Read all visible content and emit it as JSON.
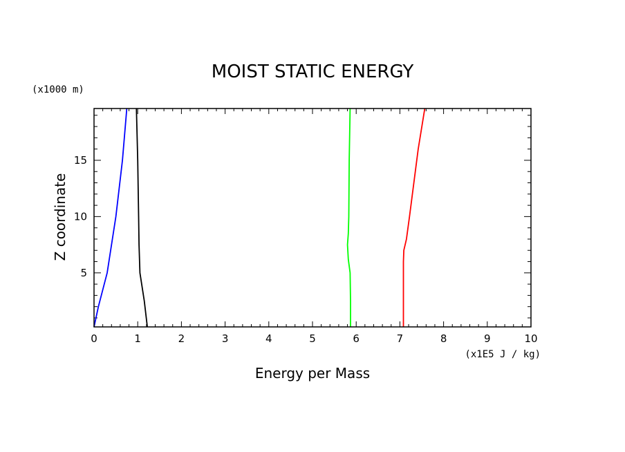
{
  "chart_data": {
    "type": "line",
    "title": "MOIST STATIC ENERGY",
    "xlabel": "Energy per Mass",
    "ylabel": "Z coordinate",
    "x_unit": "(x1E5 J / kg)",
    "y_unit": "(x1000 m)",
    "xlim": [
      0,
      10
    ],
    "ylim": [
      0.2,
      19.6
    ],
    "x_ticks": [
      0,
      1,
      2,
      3,
      4,
      5,
      6,
      7,
      8,
      9,
      10
    ],
    "y_ticks": [
      5,
      10,
      15
    ],
    "grid": false,
    "series": [
      {
        "color": "#0000ff",
        "points": [
          [
            0.0,
            0.2
          ],
          [
            0.1,
            2.0
          ],
          [
            0.3,
            5.0
          ],
          [
            0.5,
            10.0
          ],
          [
            0.65,
            15.0
          ],
          [
            0.75,
            19.6
          ]
        ]
      },
      {
        "color": "#000000",
        "points": [
          [
            1.22,
            0.2
          ],
          [
            1.15,
            2.5
          ],
          [
            1.05,
            5.0
          ],
          [
            1.03,
            7.5
          ],
          [
            1.02,
            10.0
          ],
          [
            1.0,
            15.0
          ],
          [
            0.97,
            19.6
          ]
        ]
      },
      {
        "color": "#00ff00",
        "points": [
          [
            5.87,
            0.2
          ],
          [
            5.87,
            2.5
          ],
          [
            5.86,
            5.0
          ],
          [
            5.82,
            6.2
          ],
          [
            5.8,
            7.5
          ],
          [
            5.82,
            8.5
          ],
          [
            5.83,
            10.0
          ],
          [
            5.84,
            15.0
          ],
          [
            5.86,
            19.6
          ]
        ]
      },
      {
        "color": "#ff0000",
        "points": [
          [
            7.08,
            0.2
          ],
          [
            7.08,
            3.0
          ],
          [
            7.08,
            6.0
          ],
          [
            7.09,
            7.0
          ],
          [
            7.15,
            8.0
          ],
          [
            7.22,
            10.0
          ],
          [
            7.32,
            13.0
          ],
          [
            7.42,
            16.0
          ],
          [
            7.57,
            19.6
          ]
        ]
      }
    ]
  }
}
